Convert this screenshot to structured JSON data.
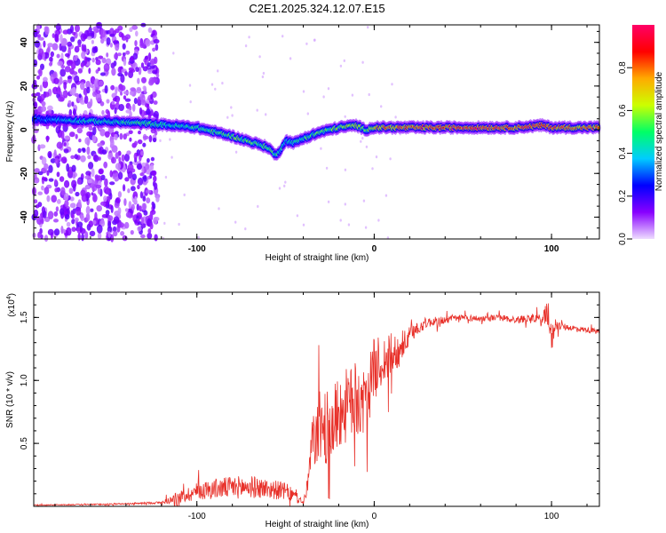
{
  "figure_title": "C2E1.2025.324.12.07.E15",
  "chart_data": [
    {
      "type": "heatmap",
      "title": "C2E1.2025.324.12.07.E15",
      "xlabel": "Height of straight line (km)",
      "ylabel": "Frequency (Hz)",
      "xlim": [
        -192,
        127
      ],
      "ylim": [
        -50,
        48
      ],
      "x_ticks": [
        -100,
        0,
        100
      ],
      "x_tick_labels": [
        "-100",
        "0",
        "100"
      ],
      "y_ticks": [
        -40,
        -20,
        0,
        20,
        40
      ],
      "y_tick_labels": [
        "-40",
        "-20",
        "0",
        "20",
        "40"
      ],
      "colorbar": {
        "label": "Normalized spectral amplitude",
        "range": [
          0.0,
          1.0
        ],
        "ticks": [
          0.0,
          0.2,
          0.4,
          0.6,
          0.8
        ],
        "tick_labels": [
          "0.0",
          "0.2",
          "0.4",
          "0.6",
          "0.8"
        ],
        "colormap": [
          "#eeddff",
          "#8800ff",
          "#0000ff",
          "#00ccff",
          "#00ff66",
          "#ccff00",
          "#ffaa00",
          "#ff0000",
          "#ff0066"
        ]
      },
      "ridge": {
        "x": [
          -192,
          -160,
          -130,
          -115,
          -100,
          -80,
          -60,
          -55,
          -50,
          -45,
          -40,
          -30,
          -20,
          -10,
          -5,
          0,
          5,
          20,
          60,
          80,
          95,
          100,
          127
        ],
        "y": [
          5,
          4,
          3,
          2,
          1,
          -3,
          -8,
          -12,
          -5,
          -6,
          -4,
          -1,
          1,
          2,
          0,
          1,
          1,
          1,
          1,
          1,
          2,
          1,
          1
        ],
        "amplitude": [
          0.3,
          0.45,
          0.5,
          0.45,
          0.5,
          0.55,
          0.55,
          0.5,
          0.4,
          0.45,
          0.5,
          0.55,
          0.6,
          0.65,
          0.5,
          0.75,
          0.8,
          0.85,
          0.9,
          0.85,
          0.9,
          0.85,
          0.8
        ]
      },
      "noise_region_x": [
        -192,
        -122
      ]
    },
    {
      "type": "line",
      "xlabel": "Height of straight line (km)",
      "ylabel": "SNR (10 * v/v)",
      "y_multiplier_label": "(x10",
      "y_multiplier_exponent": "4",
      "y_multiplier_close": ")",
      "xlim": [
        -192,
        127
      ],
      "ylim": [
        0,
        17000
      ],
      "x_ticks": [
        -100,
        0,
        100
      ],
      "x_tick_labels": [
        "-100",
        "0",
        "100"
      ],
      "y_ticks": [
        5000,
        10000,
        15000
      ],
      "y_tick_labels": [
        "0.5",
        "1.0",
        "1.5"
      ],
      "series": [
        {
          "name": "SNR",
          "color": "#e8312a",
          "x": [
            -192,
            -180,
            -160,
            -140,
            -120,
            -110,
            -100,
            -90,
            -80,
            -70,
            -60,
            -50,
            -45,
            -40,
            -38,
            -35,
            -33,
            -30,
            -25,
            -20,
            -15,
            -10,
            -5,
            0,
            5,
            10,
            15,
            20,
            25,
            30,
            40,
            50,
            60,
            70,
            80,
            90,
            95,
            98,
            100,
            102,
            105,
            110,
            120,
            127
          ],
          "y": [
            100,
            120,
            150,
            200,
            300,
            700,
            1200,
            1400,
            1500,
            1550,
            1400,
            1200,
            800,
            300,
            1200,
            5000,
            5500,
            6500,
            6000,
            7500,
            8000,
            8500,
            8000,
            11000,
            11500,
            12000,
            12500,
            13500,
            14300,
            14600,
            14800,
            15000,
            14900,
            15000,
            14800,
            15000,
            14700,
            15500,
            13000,
            14500,
            14300,
            14200,
            14000,
            13900
          ],
          "noise_amplitude": [
            40,
            40,
            50,
            60,
            100,
            500,
            700,
            800,
            900,
            900,
            800,
            700,
            500,
            200,
            800,
            2000,
            2500,
            3000,
            3000,
            3000,
            3000,
            3000,
            2500,
            2500,
            2000,
            1800,
            1200,
            800,
            600,
            400,
            300,
            250,
            250,
            250,
            300,
            300,
            500,
            1200,
            1300,
            500,
            300,
            250,
            200,
            200
          ]
        }
      ]
    }
  ]
}
